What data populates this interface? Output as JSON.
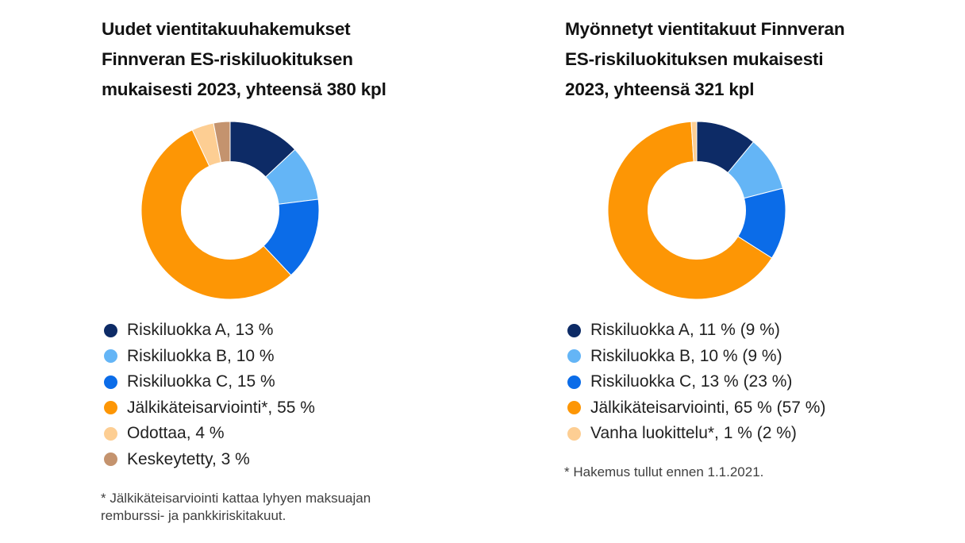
{
  "page": {
    "background_color": "#ffffff",
    "title_text_color": "#121212",
    "legend_text_color": "#212121",
    "footnote_text_color": "#3f3f3f"
  },
  "chart_data": [
    {
      "type": "pie",
      "variant": "donut",
      "title": "Uudet vientitakuuhakemukset\nFinnveran ES-riskiluokituksen\nmukaisesti 2023, yhteensä 380 kpl",
      "year": 2023,
      "total_count": 380,
      "unit": "kpl",
      "start_angle_deg": 0,
      "direction": "clockwise",
      "legend_position": "bottom",
      "segments": [
        {
          "label": "Riskiluokka A",
          "pct": 13,
          "color": "#0d2b66",
          "legend_text": "Riskiluokka A, 13 %"
        },
        {
          "label": "Riskiluokka B",
          "pct": 10,
          "color": "#64b5f6",
          "legend_text": "Riskiluokka B, 10 %"
        },
        {
          "label": "Riskiluokka C",
          "pct": 15,
          "color": "#0b6ce8",
          "legend_text": "Riskiluokka C, 15 %"
        },
        {
          "label": "Jälkikäteisarviointi*",
          "pct": 55,
          "color": "#fd9605",
          "legend_text": "Jälkikäteisarviointi*, 55 %"
        },
        {
          "label": "Odottaa",
          "pct": 4,
          "color": "#fdce93",
          "legend_text": "Odottaa, 4 %"
        },
        {
          "label": "Keskeytetty",
          "pct": 3,
          "color": "#c4936e",
          "legend_text": "Keskeytetty, 3 %"
        }
      ],
      "footnote": "* Jälkikäteisarviointi kattaa lyhyen maksuajan\nremburssi- ja pankkiriskitakuut."
    },
    {
      "type": "pie",
      "variant": "donut",
      "title": "Myönnetyt vientitakuut Finnveran\nES-riskiluokituksen mukaisesti\n2023, yhteensä 321 kpl",
      "year": 2023,
      "total_count": 321,
      "unit": "kpl",
      "start_angle_deg": 0,
      "direction": "clockwise",
      "legend_position": "bottom",
      "segments": [
        {
          "label": "Riskiluokka A",
          "pct": 11,
          "prev_year_pct": 9,
          "color": "#0d2b66",
          "legend_text": "Riskiluokka A, 11 % (9 %)"
        },
        {
          "label": "Riskiluokka B",
          "pct": 10,
          "prev_year_pct": 9,
          "color": "#64b5f6",
          "legend_text": "Riskiluokka B, 10 % (9 %)"
        },
        {
          "label": "Riskiluokka C",
          "pct": 13,
          "prev_year_pct": 23,
          "color": "#0b6ce8",
          "legend_text": "Riskiluokka C, 13 % (23 %)"
        },
        {
          "label": "Jälkikäteisarviointi",
          "pct": 65,
          "prev_year_pct": 57,
          "color": "#fd9605",
          "legend_text": "Jälkikäteisarviointi, 65 % (57 %)"
        },
        {
          "label": "Vanha luokittelu*",
          "pct": 1,
          "prev_year_pct": 2,
          "color": "#fdce93",
          "legend_text": "Vanha luokittelu*, 1 % (2 %)"
        }
      ],
      "footnote": "* Hakemus tullut ennen 1.1.2021."
    }
  ]
}
